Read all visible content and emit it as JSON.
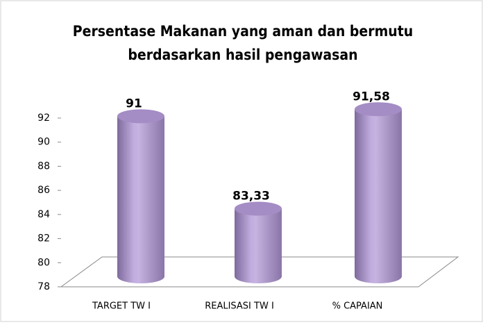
{
  "chart_data": {
    "type": "bar3d",
    "title": [
      "Persentase Makanan yang aman dan bermutu",
      "berdasarkan  hasil pengawasan"
    ],
    "categories": [
      "TARGET TW I",
      "REALISASI TW I",
      "% CAPAIAN"
    ],
    "values": [
      91,
      83.33,
      91.58
    ],
    "value_labels": [
      "91",
      "83,33",
      "91,58"
    ],
    "color": "#b7a1d4",
    "ylim": [
      78,
      92
    ],
    "yticks": [
      78,
      80,
      82,
      84,
      86,
      88,
      90,
      92
    ]
  }
}
